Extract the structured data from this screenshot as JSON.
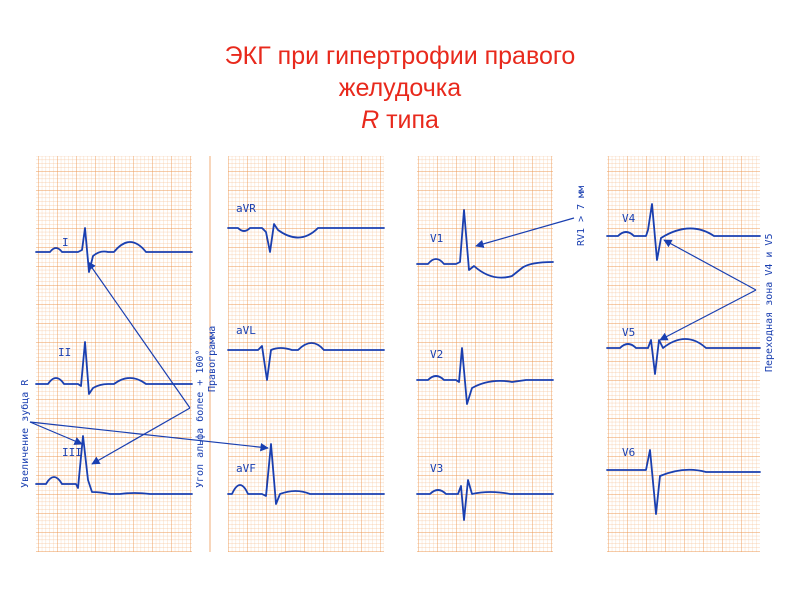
{
  "title": {
    "line1": "ЭКГ при гипертрофии правого",
    "line2": "желудочка",
    "line3_italic": "R",
    "line3_rest": " типа"
  },
  "colors": {
    "title": "#e8291c",
    "grid_minor": "#f6c49a",
    "grid_major": "#ee9a55",
    "trace": "#1a3fb0"
  },
  "leads": {
    "I": "I",
    "II": "II",
    "III": "III",
    "aVR": "aVR",
    "aVL": "aVL",
    "aVF": "aVF",
    "V1": "V1",
    "V2": "V2",
    "V3": "V3",
    "V4": "V4",
    "V5": "V5",
    "V6": "V6"
  },
  "annotations": {
    "r_increase": "Увеличение зубца R",
    "axis_line1": "Угол альфа более + 100°",
    "axis_line2": "Правограмма",
    "rv1": "RV1 > 7 мм",
    "transition": "Переходная зона V4 и V5"
  }
}
